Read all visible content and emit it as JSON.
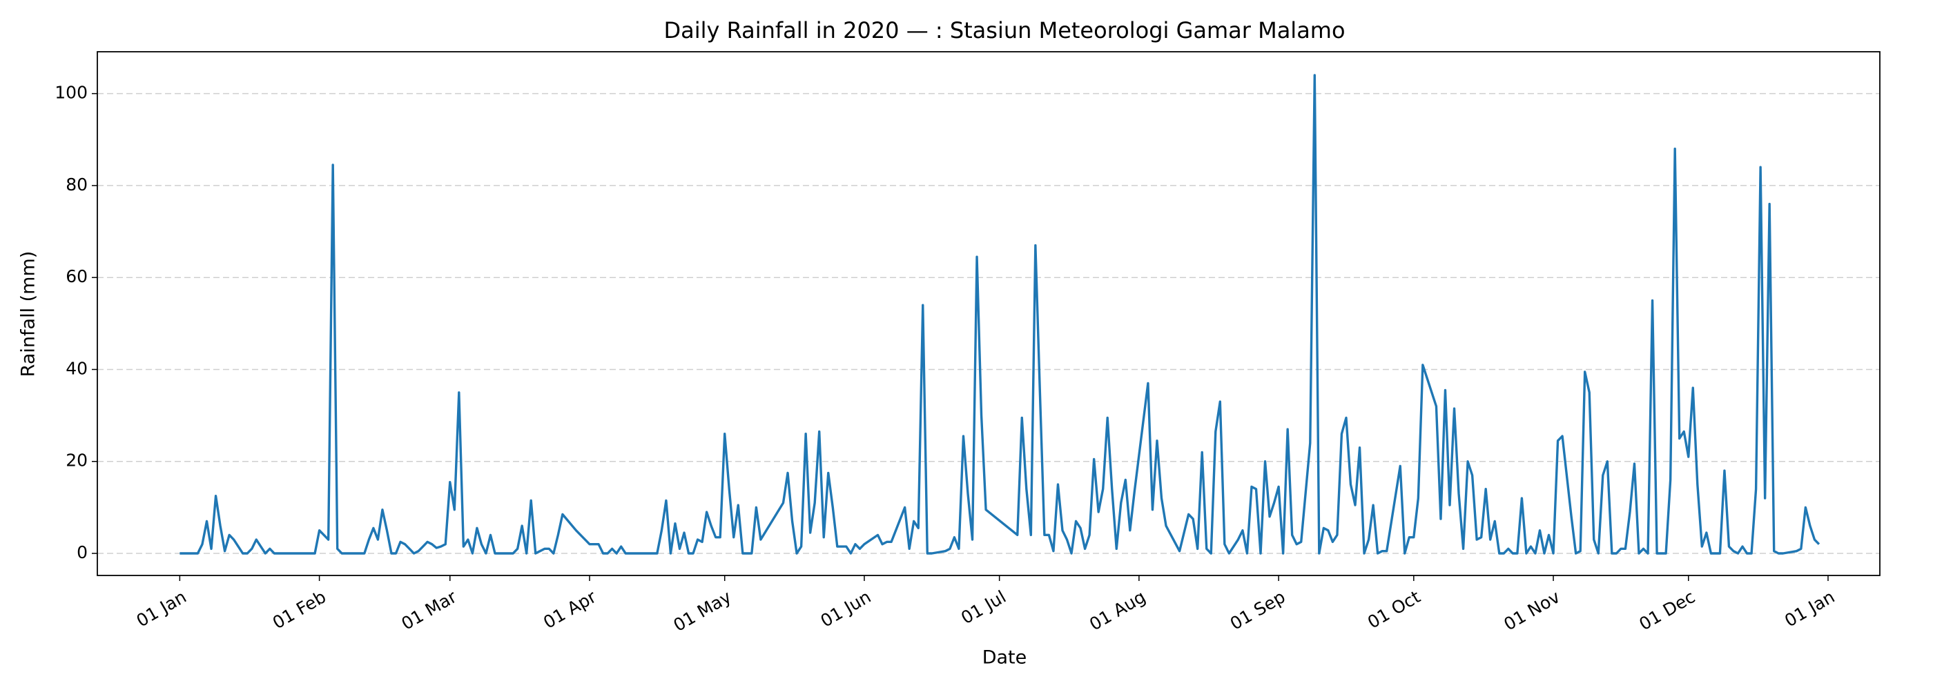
{
  "chart_data": {
    "type": "line",
    "title": "Daily Rainfall in 2020 — :  Stasiun Meteorologi Gamar Malamo",
    "x_label": "Date",
    "y_label": "Rainfall (mm)",
    "xlim": [
      -18.3,
      377.5
    ],
    "ylim": [
      -4.8,
      109.1
    ],
    "xticks": [
      {
        "value": 0,
        "label": "01 Jan"
      },
      {
        "value": 31,
        "label": "01 Feb"
      },
      {
        "value": 60,
        "label": "01 Mar"
      },
      {
        "value": 91,
        "label": "01 Apr"
      },
      {
        "value": 121,
        "label": "01 May"
      },
      {
        "value": 152,
        "label": "01 Jun"
      },
      {
        "value": 182,
        "label": "01 Jul"
      },
      {
        "value": 213,
        "label": "01 Aug"
      },
      {
        "value": 244,
        "label": "01 Sep"
      },
      {
        "value": 274,
        "label": "01 Oct"
      },
      {
        "value": 305,
        "label": "01 Nov"
      },
      {
        "value": 335,
        "label": "01 Dec"
      },
      {
        "value": 366,
        "label": "01 Jan"
      }
    ],
    "yticks": [
      0,
      20,
      40,
      60,
      80,
      100
    ],
    "grid": true,
    "series": [
      {
        "color": "#1f77b4",
        "x": [
          0,
          1,
          2,
          3,
          4,
          5,
          6,
          7,
          8,
          9,
          10,
          11,
          12,
          13,
          14,
          15,
          16,
          17,
          18,
          19,
          20,
          21,
          22,
          23,
          24,
          25,
          26,
          27,
          28,
          29,
          30,
          31,
          32,
          33,
          34,
          35,
          36,
          37,
          38,
          39,
          40,
          41,
          42,
          43,
          44,
          45,
          46,
          47,
          48,
          49,
          50,
          51,
          52,
          53,
          54,
          55,
          56,
          57,
          58,
          59,
          60,
          61,
          62,
          63,
          64,
          65,
          66,
          67,
          68,
          69,
          70,
          71,
          72,
          73,
          74,
          75,
          76,
          77,
          78,
          79,
          80,
          81,
          82,
          83,
          84,
          85,
          88,
          91,
          93,
          94,
          95,
          96,
          97,
          98,
          99,
          100,
          104,
          106,
          107,
          108,
          109,
          110,
          111,
          112,
          113,
          114,
          115,
          116,
          117,
          118,
          119,
          120,
          121,
          122,
          123,
          124,
          125,
          126,
          127,
          128,
          129,
          134,
          135,
          136,
          137,
          138,
          139,
          140,
          141,
          142,
          143,
          144,
          145,
          146,
          147,
          148,
          149,
          150,
          151,
          152,
          155,
          156,
          157,
          158,
          161,
          162,
          163,
          164,
          165,
          166,
          167,
          170,
          171,
          172,
          173,
          174,
          175,
          176,
          177,
          178,
          179,
          186,
          187,
          188,
          189,
          190,
          191,
          192,
          193,
          194,
          195,
          196,
          197,
          198,
          199,
          200,
          201,
          202,
          203,
          204,
          205,
          206,
          207,
          208,
          209,
          210,
          211,
          212,
          215,
          216,
          217,
          218,
          219,
          222,
          224,
          225,
          226,
          227,
          228,
          229,
          230,
          231,
          232,
          233,
          234,
          235,
          236,
          237,
          238,
          239,
          240,
          241,
          242,
          243,
          244,
          245,
          246,
          247,
          248,
          249,
          251,
          252,
          253,
          254,
          255,
          256,
          257,
          258,
          259,
          260,
          261,
          262,
          263,
          264,
          265,
          266,
          267,
          268,
          271,
          272,
          273,
          274,
          275,
          276,
          279,
          280,
          281,
          282,
          283,
          284,
          285,
          286,
          287,
          288,
          289,
          290,
          291,
          292,
          293,
          294,
          295,
          296,
          297,
          298,
          299,
          300,
          301,
          302,
          303,
          304,
          305,
          306,
          307,
          309,
          310,
          311,
          312,
          313,
          314,
          315,
          316,
          317,
          318,
          319,
          320,
          321,
          322,
          323,
          324,
          325,
          326,
          327,
          328,
          329,
          330,
          331,
          332,
          333,
          334,
          335,
          336,
          337,
          338,
          339,
          340,
          341,
          342,
          343,
          344,
          345,
          346,
          347,
          348,
          349,
          350,
          351,
          352,
          353,
          354,
          355,
          356,
          359,
          360,
          361,
          362,
          363,
          364
        ],
        "values": [
          0,
          0,
          0,
          0,
          0,
          2,
          7,
          1,
          12.5,
          6,
          0.5,
          4,
          3,
          1.5,
          0,
          0,
          1,
          3,
          1.5,
          0,
          1,
          0,
          0,
          0,
          0,
          0,
          0,
          0,
          0,
          0,
          0,
          5,
          4,
          3,
          84.5,
          1,
          0,
          0,
          0,
          0,
          0,
          0,
          3,
          5.5,
          3,
          9.5,
          5,
          0,
          0,
          2.5,
          2,
          1,
          0,
          0.5,
          1.5,
          2.5,
          2,
          1.2,
          1.5,
          2,
          15.5,
          9.5,
          35,
          1.5,
          3,
          0,
          5.5,
          2,
          0,
          4,
          0,
          0,
          0,
          0,
          0,
          1,
          6,
          0,
          11.5,
          0,
          0.5,
          1,
          1,
          0,
          4,
          8.5,
          5,
          2,
          2,
          0,
          0,
          1,
          0,
          1.5,
          0,
          0,
          0,
          0,
          5,
          11.5,
          0,
          6.5,
          1,
          4.5,
          0,
          0,
          3,
          2.5,
          9,
          6,
          3.5,
          3.5,
          26,
          14,
          3.5,
          10.5,
          0,
          0,
          0,
          10,
          3,
          11,
          17.5,
          7,
          0,
          1.5,
          26,
          4.5,
          11,
          26.5,
          3.5,
          17.5,
          10,
          1.5,
          1.5,
          1.5,
          0,
          2,
          1,
          2,
          4,
          2,
          2.5,
          2.5,
          10,
          1,
          7,
          5.5,
          54,
          0,
          0,
          0.5,
          1,
          3.5,
          1,
          25.5,
          13,
          3,
          64.5,
          30,
          9.5,
          4,
          29.5,
          14,
          4,
          67,
          35,
          4,
          4,
          0.5,
          15,
          5,
          3,
          0,
          7,
          5.5,
          1,
          4,
          20.5,
          9,
          14,
          29.5,
          14,
          1,
          11,
          16,
          5,
          13.5,
          37,
          9.5,
          24.5,
          12,
          6,
          0.5,
          8.5,
          7.5,
          1,
          22,
          1,
          0,
          26.5,
          33,
          2,
          0,
          1.5,
          3,
          5,
          0,
          14.5,
          14,
          0,
          20,
          8,
          11,
          14.5,
          0,
          27,
          4,
          2,
          2.5,
          24,
          104,
          0,
          5.5,
          5,
          2.5,
          4,
          26,
          29.5,
          15,
          10.5,
          23,
          0,
          3,
          10.5,
          0,
          0.5,
          0.5,
          19,
          0,
          3.5,
          3.5,
          12,
          41,
          32,
          7.5,
          35.5,
          10.5,
          31.5,
          13,
          1,
          20,
          17,
          3,
          3.5,
          14,
          3,
          7,
          0,
          0,
          1,
          0,
          0,
          12,
          0,
          1.5,
          0,
          5,
          0,
          4,
          0,
          24.5,
          25.5,
          8,
          0,
          0.5,
          39.5,
          35,
          3,
          0,
          17,
          20,
          0,
          0,
          1,
          1,
          9,
          19.5,
          0,
          1,
          0,
          55,
          0,
          0,
          0,
          16,
          88,
          25,
          26.5,
          21,
          36,
          15,
          1.5,
          4.5,
          0,
          0,
          0,
          18,
          1.5,
          0.5,
          0,
          1.5,
          0,
          0,
          14,
          84,
          12,
          76,
          0.5,
          0,
          0,
          0.5,
          1,
          10,
          6,
          3,
          2
        ]
      }
    ]
  }
}
